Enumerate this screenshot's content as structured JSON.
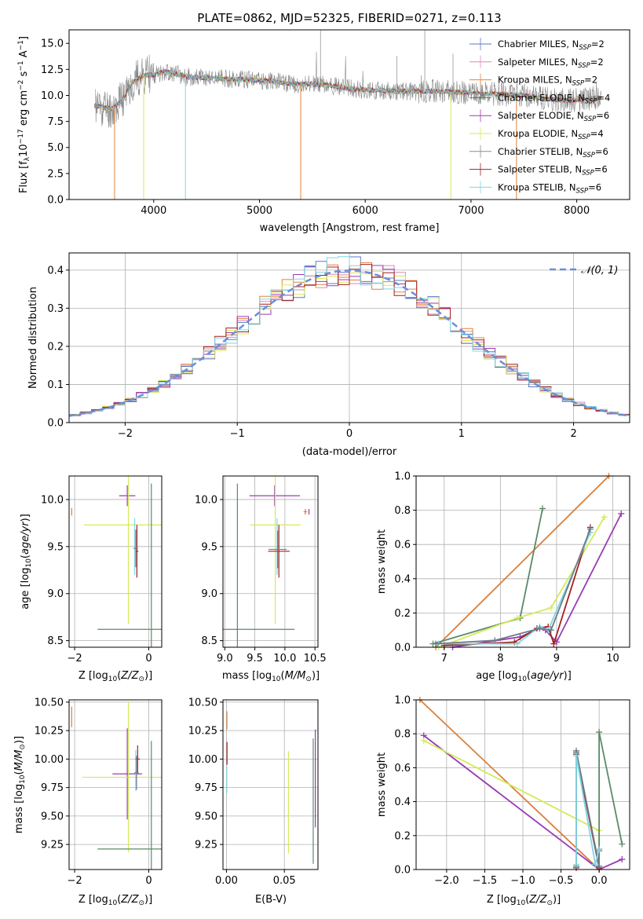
{
  "colors": {
    "Chabrier MILES": "#5b78c8",
    "Salpeter MILES": "#d98bb0",
    "Kroupa MILES": "#e0823a",
    "Chabrier ELODIE": "#4f8063",
    "Salpeter ELODIE": "#9b3bb2",
    "Kroupa ELODIE": "#d4ea58",
    "Chabrier STELIB": "#8c8c8c",
    "Salpeter STELIB": "#a31f1f",
    "Kroupa STELIB": "#7fd7e2",
    "normal_fit": "#6a8fd8",
    "mw_green": "#5a8a68",
    "mw_orange": "#d87f3a",
    "mw_lime": "#d4ea58",
    "mw_purple": "#9b3bb2",
    "mw_red": "#a31f1f",
    "mw_cyan": "#7fd7e2",
    "mw_gray": "#6c7d88"
  },
  "chart_data": [
    {
      "id": "spectrum",
      "type": "line",
      "title": "PLATE=0862, MJD=52325, FIBERID=0271, z=0.113",
      "xlabel": "wavelength [Angstrom, rest frame]",
      "ylabel": "Flux [fλ10⁻¹⁷ erg cm⁻² s⁻¹ A⁻¹]",
      "xlim": [
        3200,
        8500
      ],
      "ylim": [
        0,
        16.3
      ],
      "xticks": [
        4000,
        5000,
        6000,
        7000,
        8000
      ],
      "yticks": [
        0.0,
        2.5,
        5.0,
        7.5,
        10.0,
        12.5,
        15.0
      ],
      "legend_position": "upper right",
      "legend": [
        {
          "label": "Chabrier MILES, N",
          "sub": "SSP",
          "count": "=2"
        },
        {
          "label": "Salpeter MILES, N",
          "sub": "SSP",
          "count": "=2"
        },
        {
          "label": "Kroupa MILES, N",
          "sub": "SSP",
          "count": "=2"
        },
        {
          "label": "Chabrier ELODIE, N",
          "sub": "SSP",
          "count": "=4"
        },
        {
          "label": "Salpeter ELODIE, N",
          "sub": "SSP",
          "count": "=6"
        },
        {
          "label": "Kroupa ELODIE, N",
          "sub": "SSP",
          "count": "=4"
        },
        {
          "label": "Chabrier STELIB, N",
          "sub": "SSP",
          "count": "=6"
        },
        {
          "label": "Salpeter STELIB, N",
          "sub": "SSP",
          "count": "=6"
        },
        {
          "label": "Kroupa STELIB, N",
          "sub": "SSP",
          "count": "=6"
        }
      ],
      "continuum_x": [
        3450,
        3600,
        3700,
        3800,
        3900,
        4000,
        4100,
        4200,
        4300,
        4500,
        4700,
        4900,
        5100,
        5300,
        5500,
        5700,
        5900,
        6100,
        6300,
        6500,
        6700,
        6900,
        7100,
        7300,
        7500,
        7700,
        7900,
        8100,
        8230
      ],
      "continuum_y": [
        9.0,
        8.7,
        9.5,
        11.3,
        11.9,
        12.0,
        12.3,
        12.1,
        11.8,
        11.7,
        11.6,
        11.5,
        11.4,
        11.1,
        11.1,
        10.9,
        10.6,
        10.5,
        10.4,
        10.4,
        10.4,
        10.3,
        10.2,
        10.1,
        10.0,
        9.7,
        9.5,
        9.6,
        9.8
      ],
      "observed_noise": 0.9
    },
    {
      "id": "residual_hist",
      "type": "line",
      "xlabel": "(data-model)/error",
      "ylabel": "Normed distribution",
      "xlim": [
        -2.5,
        2.5
      ],
      "ylim": [
        0,
        0.445
      ],
      "xticks": [
        -2,
        -1,
        0,
        1,
        2
      ],
      "yticks": [
        0.0,
        0.1,
        0.2,
        0.3,
        0.4
      ],
      "legend_position": "upper right",
      "legend": [
        {
          "label": "𝒩(0, 1)"
        }
      ],
      "bin_width": 0.1,
      "bin_start": -2.5,
      "histograms": [
        {
          "model": "Chabrier MILES",
          "seed": 1
        },
        {
          "model": "Salpeter MILES",
          "seed": 2
        },
        {
          "model": "Kroupa MILES",
          "seed": 3
        },
        {
          "model": "Salpeter ELODIE",
          "seed": 4
        },
        {
          "model": "Kroupa ELODIE",
          "seed": 5
        },
        {
          "model": "Salpeter STELIB",
          "seed": 6
        },
        {
          "model": "Kroupa STELIB",
          "seed": 7
        }
      ]
    },
    {
      "id": "age_vs_Z",
      "type": "scatter",
      "xlabel": "Z [log10(Z/Z⊙)]",
      "ylabel": "age [log10(age/yr)]",
      "xlim": [
        -2.15,
        0.35
      ],
      "ylim": [
        8.43,
        10.25
      ],
      "xticks": [
        -2,
        0
      ],
      "yticks": [
        8.5,
        9.0,
        9.5,
        10.0,
        10.5
      ],
      "points": [
        {
          "c": "mw_purple",
          "x": -0.58,
          "y": 10.04,
          "xerr": 0.22,
          "yerr": 0.11
        },
        {
          "c": "mw_lime",
          "x": -0.55,
          "y": 9.73,
          "xerr": 1.2,
          "yerr": 1.05
        },
        {
          "c": "mw_green",
          "x": 0.07,
          "y": 8.62,
          "xerr": 1.45,
          "yerr": 1.55
        },
        {
          "c": "mw_cyan",
          "x": -0.38,
          "y": 9.5,
          "xerr": 0.02,
          "yerr": 0.3
        },
        {
          "c": "mw_red",
          "x": -0.32,
          "y": 9.45,
          "xerr": 0.04,
          "yerr": 0.28
        },
        {
          "c": "mw_gray",
          "x": -0.35,
          "y": 9.48,
          "xerr": 0.06,
          "yerr": 0.2
        },
        {
          "c": "mw_orange",
          "x": -2.08,
          "y": 9.87,
          "xerr": 0.0,
          "yerr": 0.04
        }
      ]
    },
    {
      "id": "age_vs_mass",
      "type": "scatter",
      "xlabel": "mass [log10(M/M⊙)]",
      "ylabel": "",
      "xlim": [
        8.97,
        10.55
      ],
      "ylim": [
        8.43,
        10.25
      ],
      "xticks": [
        9.0,
        9.5,
        10.0,
        10.5
      ],
      "yticks": [
        8.5,
        9.0,
        9.5,
        10.0,
        10.5
      ],
      "points": [
        {
          "c": "mw_purple",
          "x": 9.83,
          "y": 10.04,
          "xerr": 0.42,
          "yerr": 0.11
        },
        {
          "c": "mw_lime",
          "x": 9.84,
          "y": 9.73,
          "xerr": 0.42,
          "yerr": 1.05
        },
        {
          "c": "mw_green",
          "x": 9.21,
          "y": 8.62,
          "xerr": 0.95,
          "yerr": 1.55
        },
        {
          "c": "mw_cyan",
          "x": 9.87,
          "y": 9.5,
          "xerr": 0.02,
          "yerr": 0.3
        },
        {
          "c": "mw_red",
          "x": 9.9,
          "y": 9.45,
          "xerr": 0.18,
          "yerr": 0.28
        },
        {
          "c": "mw_gray",
          "x": 9.88,
          "y": 9.47,
          "xerr": 0.15,
          "yerr": 0.2
        },
        {
          "c": "mw_orange",
          "x": 10.34,
          "y": 9.87,
          "xerr": 0.03,
          "yerr": 0.03
        },
        {
          "c": "mw_purple",
          "x": 10.4,
          "y": 9.87,
          "xerr": 0.0,
          "yerr": 0.03
        }
      ]
    },
    {
      "id": "mass_weight_vs_age",
      "type": "line",
      "xlabel": "age [log10(age/yr)]",
      "ylabel": "mass weight",
      "xlim": [
        6.5,
        10.3
      ],
      "ylim": [
        0,
        1.0
      ],
      "xticks": [
        7,
        8,
        9,
        10
      ],
      "yticks": [
        0.0,
        0.2,
        0.4,
        0.6,
        0.8,
        1.0
      ],
      "series": [
        {
          "c": "mw_orange",
          "x": [
            6.85,
            9.93
          ],
          "y": [
            0.0,
            1.0
          ]
        },
        {
          "c": "mw_green",
          "x": [
            6.8,
            8.35,
            8.75
          ],
          "y": [
            0.02,
            0.17,
            0.81
          ]
        },
        {
          "c": "mw_lime",
          "x": [
            6.9,
            8.3,
            8.9,
            9.85
          ],
          "y": [
            0.0,
            0.17,
            0.23,
            0.76
          ]
        },
        {
          "c": "mw_purple",
          "x": [
            7.15,
            8.35,
            8.7,
            8.8,
            9.0,
            10.15
          ],
          "y": [
            0.0,
            0.06,
            0.11,
            0.1,
            0.03,
            0.78
          ]
        },
        {
          "c": "mw_red",
          "x": [
            7.0,
            8.25,
            8.65,
            8.85,
            8.95,
            9.6
          ],
          "y": [
            0.01,
            0.03,
            0.11,
            0.12,
            0.02,
            0.7
          ]
        },
        {
          "c": "mw_cyan",
          "x": [
            6.9,
            8.3,
            8.7,
            8.85,
            9.6
          ],
          "y": [
            0.02,
            0.02,
            0.12,
            0.1,
            0.67
          ]
        },
        {
          "c": "mw_gray",
          "x": [
            6.85,
            7.9,
            8.7,
            8.9,
            9.6
          ],
          "y": [
            0.02,
            0.04,
            0.11,
            0.1,
            0.69
          ]
        }
      ]
    },
    {
      "id": "mass_vs_Z",
      "type": "scatter",
      "xlabel": "Z [log10(Z/Z⊙)]",
      "ylabel": "mass [log10(M/M⊙)]",
      "xlim": [
        -2.15,
        0.35
      ],
      "ylim": [
        9.03,
        10.52
      ],
      "xticks": [
        -2,
        0
      ],
      "yticks": [
        9.25,
        9.5,
        9.75,
        10.0,
        10.25,
        10.5
      ],
      "points": [
        {
          "c": "mw_purple",
          "x": -0.58,
          "y": 9.87,
          "xerr": 0.4,
          "yerr": 0.4
        },
        {
          "c": "mw_lime",
          "x": -0.55,
          "y": 9.84,
          "xerr": 1.25,
          "yerr": 0.66
        },
        {
          "c": "mw_green",
          "x": 0.07,
          "y": 9.21,
          "xerr": 1.45,
          "yerr": 0.95
        },
        {
          "c": "mw_cyan",
          "x": -0.35,
          "y": 9.9,
          "xerr": 0.02,
          "yerr": 0.18
        },
        {
          "c": "mw_red",
          "x": -0.3,
          "y": 10.0,
          "xerr": 0.06,
          "yerr": 0.12
        },
        {
          "c": "mw_gray",
          "x": -0.33,
          "y": 9.88,
          "xerr": 0.06,
          "yerr": 0.15
        },
        {
          "c": "mw_orange",
          "x": -2.08,
          "y": 10.37,
          "xerr": 0.0,
          "yerr": 0.09
        }
      ]
    },
    {
      "id": "mass_vs_ebv",
      "type": "scatter",
      "xlabel": "E(B-V)",
      "ylabel": "",
      "xlim": [
        -0.003,
        0.079
      ],
      "ylim": [
        9.03,
        10.52
      ],
      "xticks": [
        0.0,
        0.05
      ],
      "yticks": [
        9.25,
        9.5,
        9.75,
        10.0,
        10.25,
        10.5
      ],
      "points": [
        {
          "c": "mw_purple",
          "x": 0.0767,
          "y": 9.83,
          "xerr": 0.0,
          "yerr": 0.43
        },
        {
          "c": "mw_lime",
          "x": 0.0535,
          "y": 9.62,
          "xerr": 0.0,
          "yerr": 0.45
        },
        {
          "c": "mw_green",
          "x": 0.0749,
          "y": 9.63,
          "xerr": 0.0,
          "yerr": 0.55
        },
        {
          "c": "mw_cyan",
          "x": 0.0003,
          "y": 9.82,
          "xerr": 0.0,
          "yerr": 0.12
        },
        {
          "c": "mw_red",
          "x": 0.0005,
          "y": 10.05,
          "xerr": 0.0,
          "yerr": 0.1
        },
        {
          "c": "mw_orange",
          "x": 0.0004,
          "y": 10.34,
          "xerr": 0.0,
          "yerr": 0.08
        }
      ]
    },
    {
      "id": "mass_weight_vs_Z",
      "type": "line",
      "xlabel": "Z [log10(Z/Z⊙)]",
      "ylabel": "mass weight",
      "xlim": [
        -2.4,
        0.4
      ],
      "ylim": [
        0,
        1.0
      ],
      "xticks": [
        -2.0,
        -1.5,
        -1.0,
        -0.5,
        0.0
      ],
      "xtick_labels": [
        "−2.0",
        "−1.5",
        "−1.0",
        "−0.5",
        "0.0"
      ],
      "yticks": [
        0.0,
        0.2,
        0.4,
        0.6,
        0.8,
        1.0
      ],
      "series": [
        {
          "c": "mw_orange",
          "x": [
            -2.35,
            0.0
          ],
          "y": [
            1.0,
            0.0
          ]
        },
        {
          "c": "mw_purple",
          "x": [
            -2.3,
            0.0,
            0.3
          ],
          "y": [
            0.79,
            0.0,
            0.06
          ]
        },
        {
          "c": "mw_lime",
          "x": [
            -2.3,
            0.0,
            0.0
          ],
          "y": [
            0.76,
            0.23,
            0.0
          ]
        },
        {
          "c": "mw_green",
          "x": [
            -0.3,
            -0.3,
            0.0,
            0.0,
            0.3
          ],
          "y": [
            0.02,
            0.69,
            0.02,
            0.81,
            0.15
          ]
        },
        {
          "c": "mw_red",
          "x": [
            -0.3,
            -0.3,
            0.0,
            0.0
          ],
          "y": [
            0.01,
            0.68,
            0.01,
            0.12
          ]
        },
        {
          "c": "mw_gray",
          "x": [
            -0.3,
            -0.3,
            0.0,
            0.0
          ],
          "y": [
            0.02,
            0.7,
            0.02,
            0.11
          ]
        },
        {
          "c": "mw_cyan",
          "x": [
            -0.3,
            -0.3,
            -0.05,
            0.0
          ],
          "y": [
            0.03,
            0.67,
            0.03,
            0.12
          ]
        }
      ]
    }
  ]
}
